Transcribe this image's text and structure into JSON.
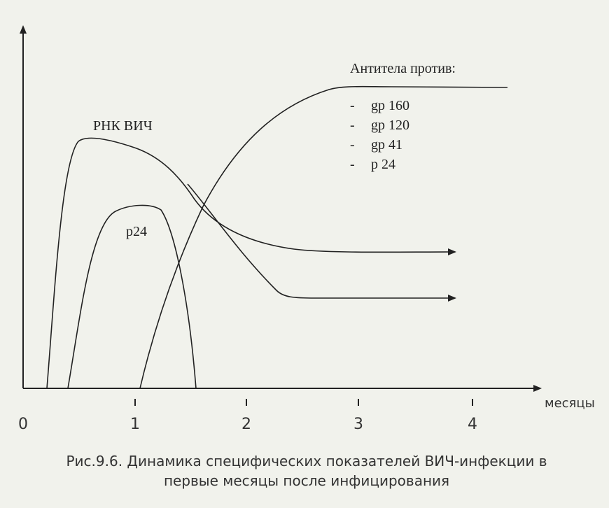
{
  "axis": {
    "x_label": "месяцы",
    "x_ticks": [
      "0",
      "1",
      "2",
      "3",
      "4"
    ]
  },
  "curves": {
    "rna": "РНК ВИЧ",
    "p24": "р24"
  },
  "legend": {
    "title": "Антитела против:",
    "items": [
      "gp 160",
      "gp 120",
      "gp 41",
      "р 24"
    ]
  },
  "caption": {
    "lines": [
      "Рис.9.6. Динамика специфических показателей ВИЧ-инфекции в",
      "первые месяцы после инфицирования"
    ]
  }
}
